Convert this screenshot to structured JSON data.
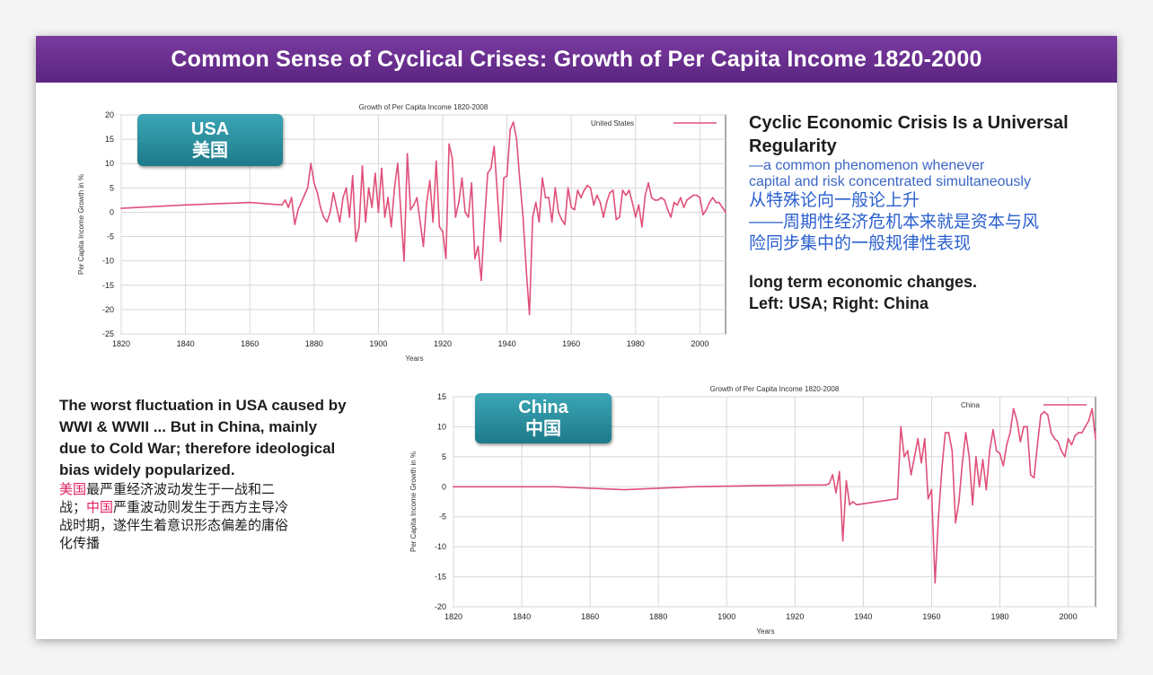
{
  "slide_title": "Common Sense of Cyclical Crises: Growth of Per Capita Income 1820-2000",
  "colors": {
    "banner": "#6a2f91",
    "series": "#e0507a",
    "teal": "#2a8f9f",
    "blue_text": "#2a5fcf",
    "red_text": "#e02060"
  },
  "usa_badge": {
    "en": "USA",
    "cn": "美国"
  },
  "china_badge": {
    "en": "China",
    "cn": "中国"
  },
  "right_text": {
    "heading_l1": "Cyclic Economic Crisis Is a Universal",
    "heading_l2": "Regularity",
    "en_l1": "—a common phenomenon whenever",
    "en_l2": "capital and risk concentrated simultaneously",
    "cn_l1": "从特殊论向一般论上升",
    "cn_l2": "——周期性经济危机本来就是资本与风",
    "cn_l3": "险同步集中的一般规律性表现",
    "note_l1": "long term economic changes.",
    "note_l2": "Left: USA; Right: China"
  },
  "left_text": {
    "en_l1": "The worst fluctuation in USA caused by",
    "en_l2": "WWI & WWII ... But in China, mainly",
    "en_l3": "due to Cold War; therefore ideological",
    "en_l4": "bias widely popularized.",
    "cn_l1_red": "美国",
    "cn_l1_rest": "最严重经济波动发生于一战和二",
    "cn_l2_a": "战；",
    "cn_l2_red": "中国",
    "cn_l2_rest": "严重波动则发生于西方主导冷",
    "cn_l3": "战时期，遂伴生着意识形态偏差的庸俗",
    "cn_l4": "化传播"
  },
  "chart_data": [
    {
      "type": "line",
      "title": "Growth of Per Capita Income 1820-2008",
      "xlabel": "Years",
      "ylabel": "Per Capita Income Growth in %",
      "xlim": [
        1820,
        2008
      ],
      "ylim": [
        -25,
        20
      ],
      "xticks": [
        1820,
        1840,
        1860,
        1880,
        1900,
        1920,
        1940,
        1960,
        1980,
        2000
      ],
      "yticks": [
        20,
        15,
        10,
        5,
        0,
        -5,
        -10,
        -15,
        -20,
        -25
      ],
      "legend": "top-right",
      "series": [
        {
          "name": "United States",
          "x": [
            1820,
            1840,
            1860,
            1870,
            1871,
            1872,
            1873,
            1874,
            1875,
            1876,
            1877,
            1878,
            1879,
            1880,
            1881,
            1882,
            1883,
            1884,
            1885,
            1886,
            1887,
            1888,
            1889,
            1890,
            1891,
            1892,
            1893,
            1894,
            1895,
            1896,
            1897,
            1898,
            1899,
            1900,
            1901,
            1902,
            1903,
            1904,
            1905,
            1906,
            1907,
            1908,
            1909,
            1910,
            1911,
            1912,
            1913,
            1914,
            1915,
            1916,
            1917,
            1918,
            1919,
            1920,
            1921,
            1922,
            1923,
            1924,
            1925,
            1926,
            1927,
            1928,
            1929,
            1930,
            1931,
            1932,
            1933,
            1934,
            1935,
            1936,
            1937,
            1938,
            1939,
            1940,
            1941,
            1942,
            1943,
            1944,
            1945,
            1946,
            1947,
            1948,
            1949,
            1950,
            1951,
            1952,
            1953,
            1954,
            1955,
            1956,
            1957,
            1958,
            1959,
            1960,
            1961,
            1962,
            1963,
            1964,
            1965,
            1966,
            1967,
            1968,
            1969,
            1970,
            1971,
            1972,
            1973,
            1974,
            1975,
            1976,
            1977,
            1978,
            1979,
            1980,
            1981,
            1982,
            1983,
            1984,
            1985,
            1986,
            1987,
            1988,
            1989,
            1990,
            1991,
            1992,
            1993,
            1994,
            1995,
            1996,
            1997,
            1998,
            1999,
            2000,
            2001,
            2002,
            2003,
            2004,
            2005,
            2006,
            2007,
            2008
          ],
          "y": [
            0.8,
            1.5,
            2.0,
            1.5,
            2.5,
            1.0,
            3.0,
            -2.5,
            0.5,
            2.0,
            3.5,
            5.0,
            10.0,
            6.0,
            4.0,
            1.0,
            -1.0,
            -2.0,
            0.0,
            4.0,
            1.0,
            -2.0,
            3.0,
            5.0,
            -1.0,
            7.5,
            -6.0,
            -3.0,
            9.5,
            -2.0,
            5.0,
            1.0,
            8.0,
            0.0,
            9.0,
            -1.0,
            3.0,
            -3.0,
            5.0,
            10.0,
            0.0,
            -10.0,
            12.0,
            0.5,
            1.5,
            3.0,
            -2.0,
            -7.0,
            2.0,
            6.5,
            -2.0,
            10.5,
            -3.0,
            -4.0,
            -9.5,
            14.0,
            11.0,
            -1.0,
            2.0,
            7.0,
            0.0,
            -1.0,
            6.0,
            -9.5,
            -7.0,
            -14.0,
            -2.0,
            8.0,
            9.0,
            13.5,
            4.0,
            -6.0,
            7.0,
            7.5,
            17.0,
            18.5,
            15.0,
            6.5,
            -1.0,
            -12.0,
            -21.0,
            -1.0,
            2.0,
            -2.0,
            7.0,
            3.0,
            3.0,
            -2.0,
            5.0,
            0.0,
            -1.5,
            -2.5,
            5.0,
            1.0,
            0.5,
            4.5,
            3.0,
            4.5,
            5.5,
            5.0,
            1.5,
            3.5,
            2.0,
            -1.0,
            2.0,
            4.0,
            4.5,
            -1.5,
            -1.0,
            4.5,
            3.5,
            4.5,
            2.0,
            -1.0,
            1.5,
            -3.0,
            3.5,
            6.0,
            3.0,
            2.5,
            2.5,
            3.0,
            2.5,
            0.5,
            -1.0,
            2.0,
            1.5,
            3.0,
            1.0,
            2.5,
            3.0,
            3.5,
            3.5,
            3.0,
            -0.5,
            0.5,
            2.0,
            3.0,
            2.0,
            2.0,
            1.0,
            0.0
          ]
        }
      ]
    },
    {
      "type": "line",
      "title": "Growth of Per Capita Income 1820-2008",
      "xlabel": "Years",
      "ylabel": "Per Capita Income Growth in %",
      "xlim": [
        1820,
        2008
      ],
      "ylim": [
        -20,
        15
      ],
      "xticks": [
        1820,
        1840,
        1860,
        1880,
        1900,
        1920,
        1940,
        1960,
        1980,
        2000
      ],
      "yticks": [
        15,
        10,
        5,
        0,
        -5,
        -10,
        -15,
        -20
      ],
      "legend": "top-right",
      "series": [
        {
          "name": "China",
          "x": [
            1820,
            1850,
            1870,
            1890,
            1910,
            1925,
            1929,
            1930,
            1931,
            1932,
            1933,
            1934,
            1935,
            1936,
            1937,
            1938,
            1950,
            1951,
            1952,
            1953,
            1954,
            1955,
            1956,
            1957,
            1958,
            1959,
            1960,
            1961,
            1962,
            1963,
            1964,
            1965,
            1966,
            1967,
            1968,
            1969,
            1970,
            1971,
            1972,
            1973,
            1974,
            1975,
            1976,
            1977,
            1978,
            1979,
            1980,
            1981,
            1982,
            1983,
            1984,
            1985,
            1986,
            1987,
            1988,
            1989,
            1990,
            1991,
            1992,
            1993,
            1994,
            1995,
            1996,
            1997,
            1998,
            1999,
            2000,
            2001,
            2002,
            2003,
            2004,
            2005,
            2006,
            2007,
            2008
          ],
          "y": [
            0.0,
            0.0,
            -0.5,
            0.0,
            0.2,
            0.3,
            0.3,
            0.5,
            2.0,
            -1.0,
            2.5,
            -9.0,
            1.0,
            -3.0,
            -2.5,
            -3.0,
            -2.0,
            10.0,
            5.0,
            6.0,
            2.0,
            5.0,
            8.0,
            4.0,
            8.0,
            -2.0,
            -0.5,
            -16.0,
            -5.0,
            3.0,
            9.0,
            9.0,
            6.0,
            -6.0,
            -2.5,
            4.0,
            9.0,
            5.0,
            -3.0,
            5.0,
            0.0,
            4.5,
            -0.5,
            6.0,
            9.5,
            6.0,
            5.5,
            3.5,
            7.0,
            9.0,
            13.0,
            11.0,
            7.5,
            10.0,
            10.0,
            2.0,
            1.5,
            7.0,
            12.0,
            12.5,
            12.0,
            9.0,
            8.0,
            7.5,
            6.0,
            5.0,
            8.0,
            7.0,
            8.5,
            9.0,
            9.0,
            10.0,
            11.0,
            13.0,
            8.0
          ]
        }
      ]
    }
  ]
}
